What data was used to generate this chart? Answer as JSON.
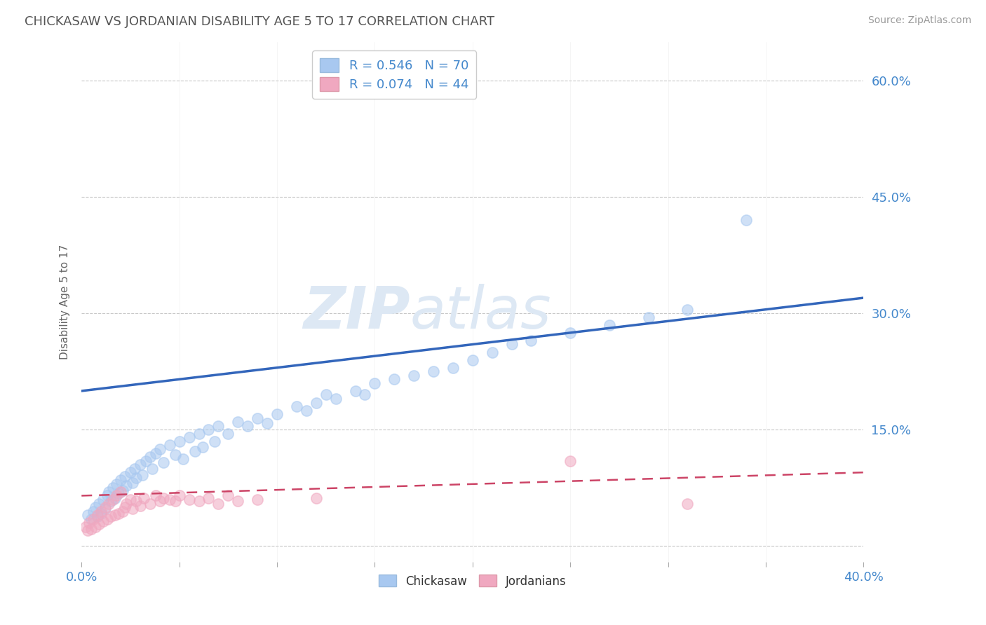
{
  "title": "CHICKASAW VS JORDANIAN DISABILITY AGE 5 TO 17 CORRELATION CHART",
  "source_text": "Source: ZipAtlas.com",
  "ylabel": "Disability Age 5 to 17",
  "legend_label1": "R = 0.546   N = 70",
  "legend_label2": "R = 0.074   N = 44",
  "legend_bottom1": "Chickasaw",
  "legend_bottom2": "Jordanians",
  "y_ticks": [
    0.0,
    0.15,
    0.3,
    0.45,
    0.6
  ],
  "x_min": 0.0,
  "x_max": 0.4,
  "y_min": -0.02,
  "y_max": 0.65,
  "background_color": "#ffffff",
  "grid_color": "#c8c8c8",
  "blue_color": "#a8c8f0",
  "pink_color": "#f0a8c0",
  "blue_line_color": "#3366bb",
  "pink_line_color": "#cc4466",
  "title_color": "#555555",
  "axis_label_color": "#4488cc",
  "watermark_color": "#dde8f0",
  "blue_line_start_y": 0.2,
  "blue_line_end_y": 0.32,
  "pink_line_start_y": 0.065,
  "pink_line_end_y": 0.095,
  "chickasaw_x": [
    0.003,
    0.005,
    0.006,
    0.007,
    0.008,
    0.009,
    0.01,
    0.011,
    0.012,
    0.013,
    0.014,
    0.015,
    0.016,
    0.017,
    0.018,
    0.019,
    0.02,
    0.021,
    0.022,
    0.023,
    0.025,
    0.026,
    0.027,
    0.028,
    0.03,
    0.031,
    0.033,
    0.035,
    0.036,
    0.038,
    0.04,
    0.042,
    0.045,
    0.048,
    0.05,
    0.052,
    0.055,
    0.058,
    0.06,
    0.062,
    0.065,
    0.068,
    0.07,
    0.075,
    0.08,
    0.085,
    0.09,
    0.095,
    0.1,
    0.11,
    0.115,
    0.12,
    0.125,
    0.13,
    0.14,
    0.145,
    0.15,
    0.16,
    0.17,
    0.18,
    0.19,
    0.2,
    0.21,
    0.22,
    0.23,
    0.25,
    0.27,
    0.29,
    0.31,
    0.34
  ],
  "chickasaw_y": [
    0.04,
    0.035,
    0.045,
    0.05,
    0.038,
    0.055,
    0.042,
    0.06,
    0.048,
    0.065,
    0.07,
    0.058,
    0.075,
    0.062,
    0.08,
    0.068,
    0.085,
    0.072,
    0.09,
    0.078,
    0.095,
    0.082,
    0.1,
    0.088,
    0.105,
    0.092,
    0.11,
    0.115,
    0.1,
    0.12,
    0.125,
    0.108,
    0.13,
    0.118,
    0.135,
    0.112,
    0.14,
    0.122,
    0.145,
    0.128,
    0.15,
    0.135,
    0.155,
    0.145,
    0.16,
    0.155,
    0.165,
    0.158,
    0.17,
    0.18,
    0.175,
    0.185,
    0.195,
    0.19,
    0.2,
    0.195,
    0.21,
    0.215,
    0.22,
    0.225,
    0.23,
    0.24,
    0.25,
    0.26,
    0.265,
    0.275,
    0.285,
    0.295,
    0.305,
    0.42
  ],
  "jordanian_x": [
    0.002,
    0.003,
    0.004,
    0.005,
    0.006,
    0.007,
    0.008,
    0.009,
    0.01,
    0.011,
    0.012,
    0.013,
    0.014,
    0.015,
    0.016,
    0.017,
    0.018,
    0.019,
    0.02,
    0.021,
    0.022,
    0.023,
    0.025,
    0.026,
    0.028,
    0.03,
    0.032,
    0.035,
    0.038,
    0.04,
    0.042,
    0.045,
    0.048,
    0.05,
    0.055,
    0.06,
    0.065,
    0.07,
    0.075,
    0.08,
    0.09,
    0.12,
    0.25,
    0.31
  ],
  "jordanian_y": [
    0.025,
    0.02,
    0.03,
    0.022,
    0.035,
    0.025,
    0.04,
    0.028,
    0.045,
    0.032,
    0.05,
    0.035,
    0.055,
    0.038,
    0.06,
    0.04,
    0.065,
    0.042,
    0.07,
    0.045,
    0.05,
    0.055,
    0.06,
    0.048,
    0.058,
    0.052,
    0.062,
    0.055,
    0.065,
    0.058,
    0.062,
    0.06,
    0.058,
    0.065,
    0.06,
    0.058,
    0.062,
    0.055,
    0.065,
    0.058,
    0.06,
    0.062,
    0.11,
    0.055
  ]
}
